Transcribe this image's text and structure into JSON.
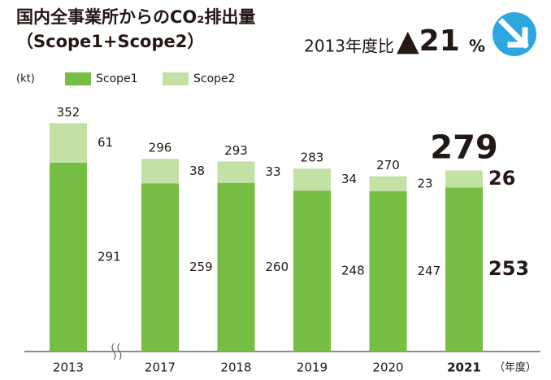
{
  "chart_data": {
    "type": "stacked_bar",
    "title": [
      "国内全事業所からのCO₂排出量",
      "（Scope1+Scope2）"
    ],
    "annotation": {
      "prefix": "2013年度比",
      "value": "▲21",
      "unit": "%"
    },
    "unit_label": "(kt)",
    "x_unit_label": "（年度）",
    "categories": [
      "2013",
      "2017",
      "2018",
      "2019",
      "2020",
      "2021"
    ],
    "series": [
      {
        "name": "Scope1",
        "color": "#76bd43",
        "values": [
          291,
          259,
          260,
          248,
          247,
          253
        ]
      },
      {
        "name": "Scope2",
        "color": "#c3e0a5",
        "values": [
          61,
          38,
          33,
          34,
          23,
          26
        ]
      }
    ],
    "totals": [
      352,
      296,
      293,
      283,
      270,
      279
    ],
    "highlight_index": 5,
    "ylim": [
      0,
      380
    ]
  }
}
